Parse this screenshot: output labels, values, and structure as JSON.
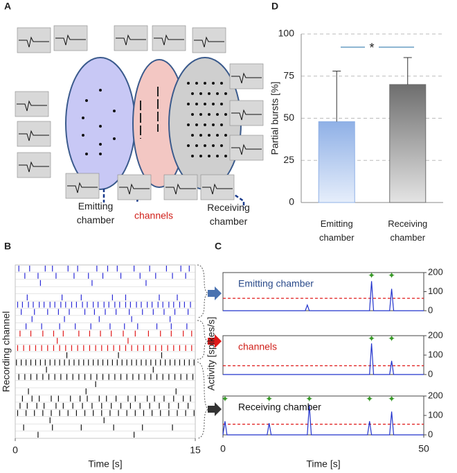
{
  "panel_labels": [
    "A",
    "B",
    "C",
    "D"
  ],
  "diagram": {
    "emitting": "Emitting chamber",
    "channels": "channels",
    "receiving": "Receiving chamber"
  },
  "chart_data": [
    {
      "type": "bar",
      "categories": [
        "Emitting chamber",
        "Receiving chamber"
      ],
      "values": [
        48,
        70
      ],
      "errors": [
        30,
        16
      ],
      "colors": [
        "#8fb0e6",
        "#6e6e6e"
      ],
      "ylabel": "Partial bursts [%]",
      "ylim": [
        0,
        100
      ],
      "yticks": [
        0,
        25,
        50,
        75,
        100
      ],
      "grid": true,
      "annotation": "*"
    },
    {
      "type": "raster",
      "xlabel": "Time [s]",
      "ylabel": "Recording channel",
      "xlim": [
        0,
        15
      ],
      "xticks": [
        0,
        15
      ],
      "series": [
        {
          "color": "#2a2ad6",
          "values": [
            0.3,
            1.2,
            2.5,
            3.1,
            4.4,
            5.2,
            6.8,
            7.7,
            8.5,
            9.9,
            11.2,
            12.6,
            13.8,
            14.5
          ]
        },
        {
          "color": "#2a2ad6",
          "values": [
            0.8,
            1.9,
            3.4,
            4.9,
            6.1,
            7.3,
            8.8,
            10.4,
            11.7,
            13.1,
            14.2
          ]
        },
        {
          "color": "#2a2ad6",
          "values": [
            2.1,
            6.4,
            10.9
          ]
        },
        {
          "color": "#2a2ad6",
          "values": []
        },
        {
          "color": "#2a2ad6",
          "values": [
            1.0,
            3.9,
            5.5,
            8.1,
            9.2,
            12.0,
            13.5
          ]
        },
        {
          "color": "#2a2ad6",
          "values": [
            0.2,
            0.6,
            1.1,
            1.5,
            2.0,
            2.4,
            2.9,
            3.3,
            3.8,
            4.2,
            4.7,
            5.1,
            5.6,
            6.0,
            6.5,
            6.9,
            7.4,
            7.8,
            8.3,
            8.7,
            9.2,
            9.6,
            10.1,
            10.5,
            11.0,
            11.4,
            11.9,
            12.3,
            12.8,
            13.2,
            13.7,
            14.1,
            14.6
          ]
        },
        {
          "color": "#2a2ad6",
          "values": [
            0.5,
            1.6,
            2.7,
            3.6,
            4.5,
            5.8,
            6.6,
            7.5,
            8.4,
            9.5,
            10.6,
            11.5,
            12.4,
            13.3,
            14.4
          ]
        },
        {
          "color": "#2a2ad6",
          "values": [
            1.4,
            4.1,
            7.0,
            9.7,
            12.9
          ]
        },
        {
          "color": "#2a2ad6",
          "values": [
            0.9,
            2.2,
            3.7,
            5.0,
            6.3,
            7.9,
            9.1,
            10.2,
            11.8,
            13.0,
            14.3
          ]
        },
        {
          "color": "#e01818",
          "values": [
            0.4,
            1.3,
            2.3,
            3.2,
            4.0,
            5.3,
            6.2,
            7.1,
            8.0,
            9.0,
            10.0,
            11.1,
            12.1,
            13.0,
            14.0,
            14.7
          ]
        },
        {
          "color": "#e01818",
          "values": [
            3.5,
            9.4
          ]
        },
        {
          "color": "#e01818",
          "values": [
            0.2,
            0.7,
            1.2,
            1.7,
            2.2,
            2.7,
            3.2,
            3.7,
            4.2,
            4.7,
            5.2,
            5.7,
            6.2,
            6.7,
            7.2,
            7.7,
            8.2,
            8.7,
            9.2,
            9.7,
            10.2,
            10.7,
            11.2,
            11.7,
            12.2,
            12.7,
            13.2,
            13.7,
            14.2,
            14.7
          ]
        },
        {
          "color": "#111111",
          "values": [
            4.3,
            8.6,
            12.2
          ]
        },
        {
          "color": "#111111",
          "values": [
            0.1,
            0.5,
            0.9,
            1.3,
            1.7,
            2.1,
            2.5,
            2.9,
            3.3,
            3.7,
            4.1,
            4.5,
            4.9,
            5.3,
            5.7,
            6.1,
            6.5,
            6.9,
            7.3,
            7.7,
            8.1,
            8.5,
            8.9,
            9.3,
            9.7,
            10.1,
            10.5,
            10.9,
            11.3,
            11.7,
            12.1,
            12.5,
            12.9,
            13.3,
            13.7,
            14.1,
            14.5,
            14.9
          ]
        },
        {
          "color": "#111111",
          "values": [
            2.6,
            11.5
          ]
        },
        {
          "color": "#111111",
          "values": [
            0.3,
            0.8,
            1.3,
            1.8,
            2.3,
            2.8,
            3.3,
            3.8,
            4.3,
            4.8,
            5.3,
            5.8,
            6.3,
            6.8,
            7.3,
            7.8,
            8.3,
            8.8,
            9.3,
            9.8,
            10.3,
            10.8,
            11.3,
            11.8,
            12.3,
            12.8,
            13.3,
            13.8,
            14.3,
            14.8
          ]
        },
        {
          "color": "#111111",
          "values": [
            6.7
          ]
        },
        {
          "color": "#111111",
          "values": [
            1.1,
            5.9,
            13.4
          ]
        },
        {
          "color": "#111111",
          "values": [
            0.6,
            1.4,
            2.0,
            3.0,
            3.6,
            4.6,
            5.4,
            6.0,
            7.0,
            7.6,
            8.4,
            9.4,
            10.0,
            11.0,
            11.6,
            12.4,
            13.2,
            14.0,
            14.6
          ]
        },
        {
          "color": "#111111",
          "values": [
            0.4,
            1.0,
            1.8,
            2.4,
            3.4,
            4.0,
            4.8,
            5.6,
            6.4,
            7.2,
            8.0,
            8.8,
            9.6,
            10.4,
            11.2,
            12.0,
            12.8,
            13.6,
            14.4
          ]
        },
        {
          "color": "#111111",
          "values": [
            0.2,
            0.9,
            1.6,
            2.3,
            3.0,
            3.7,
            4.4,
            5.1,
            5.8,
            6.5,
            7.2,
            7.9,
            8.6,
            9.3,
            10.0,
            10.7,
            11.4,
            12.1,
            12.8,
            13.5,
            14.2,
            14.9
          ]
        },
        {
          "color": "#111111",
          "values": [
            2.9,
            7.4
          ]
        },
        {
          "color": "#111111",
          "values": [
            0.7,
            3.1,
            5.5,
            8.2,
            10.6,
            13.1
          ]
        },
        {
          "color": "#111111",
          "values": [
            1.9,
            9.9
          ]
        }
      ]
    },
    {
      "type": "line",
      "title": "Emitting chamber",
      "color": "#2233cc",
      "x": [
        0,
        20.5,
        21,
        21.5,
        36.5,
        37,
        37.5,
        41.5,
        42,
        42.5,
        50
      ],
      "values": [
        0,
        0,
        30,
        0,
        0,
        155,
        0,
        0,
        115,
        0,
        0
      ],
      "threshold": 65,
      "markers": [
        37,
        42
      ],
      "xlim": [
        0,
        50
      ],
      "ylim": [
        0,
        200
      ],
      "yticks": [
        0,
        100,
        200
      ]
    },
    {
      "type": "line",
      "title": "channels",
      "color": "#2233cc",
      "x": [
        0,
        36.5,
        37,
        37.5,
        41.5,
        42,
        42.5,
        50
      ],
      "values": [
        0,
        0,
        160,
        0,
        0,
        70,
        0,
        0
      ],
      "threshold": 45,
      "markers": [
        37,
        42
      ],
      "xlim": [
        0,
        50
      ],
      "ylim": [
        0,
        200
      ],
      "yticks": [
        0,
        100,
        200
      ],
      "ylabel": "Activity [spikes/s]"
    },
    {
      "type": "line",
      "title": "Receiving chamber",
      "color": "#2233cc",
      "x": [
        0,
        0.5,
        1,
        11,
        11.5,
        12,
        21,
        21.5,
        22,
        36,
        36.5,
        37,
        41.5,
        42,
        42.5,
        50
      ],
      "values": [
        0,
        70,
        0,
        0,
        60,
        0,
        0,
        155,
        0,
        0,
        70,
        0,
        0,
        120,
        0,
        0
      ],
      "threshold": 55,
      "markers": [
        0.5,
        11.5,
        21.5,
        36.5,
        42
      ],
      "xlim": [
        0,
        50
      ],
      "ylim": [
        0,
        200
      ],
      "yticks": [
        0,
        100,
        200
      ],
      "xticks": [
        0,
        50
      ],
      "xlabel": "Time [s]"
    }
  ]
}
